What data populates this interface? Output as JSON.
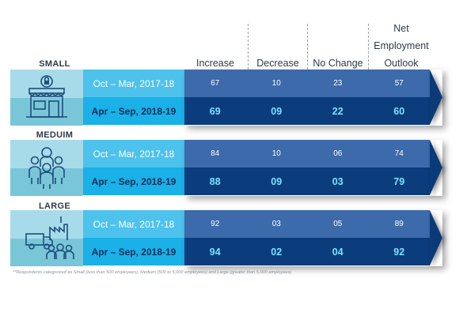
{
  "columns": {
    "increase": "Increase",
    "decrease": "Decrease",
    "no_change": "No Change",
    "net_line1": "Net",
    "net_line2": "Employment",
    "net_line3": "Outlook"
  },
  "groups": [
    {
      "label": "SMALL",
      "icon": "storefront-icon",
      "rows": [
        {
          "period": "Oct – Mar, 2017-18",
          "values": [
            "67",
            "10",
            "23",
            "57"
          ]
        },
        {
          "period": "Apr – Sep, 2018-19",
          "values": [
            "69",
            "09",
            "22",
            "60"
          ]
        }
      ]
    },
    {
      "label": "MEDUIM",
      "icon": "people-group-icon",
      "rows": [
        {
          "period": "Oct – Mar, 2017-18",
          "values": [
            "84",
            "10",
            "06",
            "74"
          ]
        },
        {
          "period": "Apr – Sep, 2018-19",
          "values": [
            "88",
            "09",
            "03",
            "79"
          ]
        }
      ]
    },
    {
      "label": "LARGE",
      "icon": "factory-truck-icon",
      "rows": [
        {
          "period": "Oct – Mar, 2017-18",
          "values": [
            "92",
            "03",
            "05",
            "89"
          ]
        },
        {
          "period": "Apr – Sep, 2018-19",
          "values": [
            "94",
            "02",
            "04",
            "92"
          ]
        }
      ]
    }
  ],
  "footnote": "**Respondents categorized as Small (less than 500 employees), Medium (500 to 5,000 employees) and Large (greater than 5,000 employees)",
  "colors": {
    "prev_row": "#3c6aaa",
    "curr_row": "#0b3d7c",
    "prev_period": "#4dc2ec",
    "curr_period": "#1ab0e8",
    "highlight_text": "#7be0ff"
  }
}
